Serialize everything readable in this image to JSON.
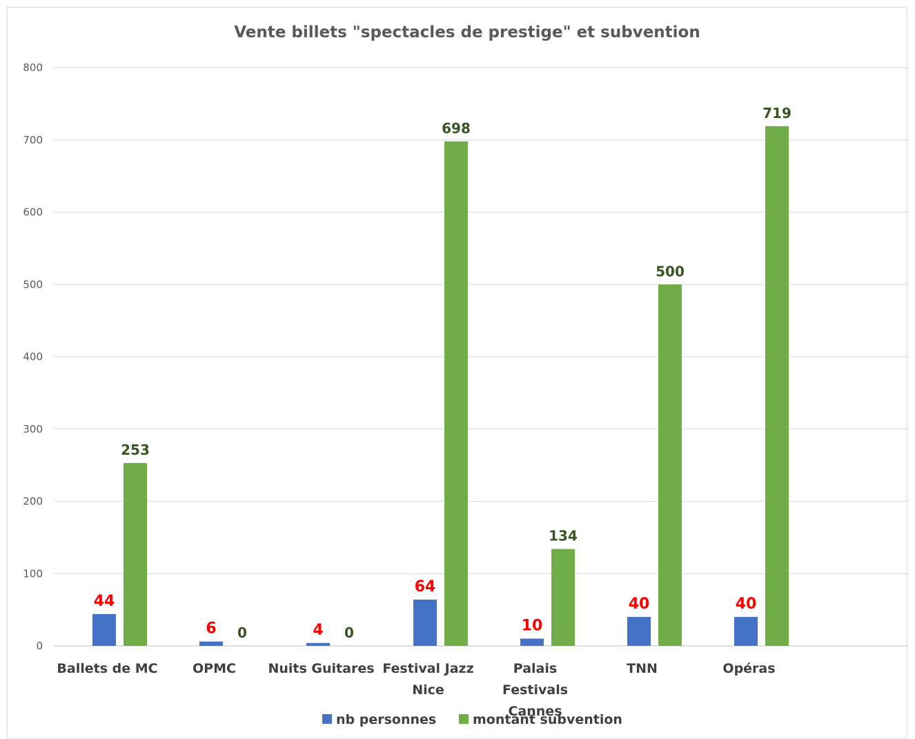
{
  "chart_data": {
    "type": "bar",
    "title": "Vente billets \"spectacles de prestige\" et subvention",
    "xlabel": "",
    "ylabel": "",
    "ylim": [
      0,
      800
    ],
    "yticks": [
      "0",
      "100",
      "200",
      "300",
      "400",
      "500",
      "600",
      "700",
      "800"
    ],
    "categories": [
      [
        "Ballets de MC"
      ],
      [
        "OPMC"
      ],
      [
        "Nuits Guitares"
      ],
      [
        "Festival Jazz",
        "Nice"
      ],
      [
        "Palais",
        "Festivals",
        "Cannes"
      ],
      [
        "TNN"
      ],
      [
        "Opéras"
      ]
    ],
    "series": [
      {
        "name": "nb personnes",
        "color": "#4472c4",
        "label_color": "#ff0000",
        "values": [
          44,
          6,
          4,
          64,
          10,
          40,
          40
        ]
      },
      {
        "name": "montant subvention",
        "color": "#70ad47",
        "label_color": "#375623",
        "values": [
          253,
          0,
          0,
          698,
          134,
          500,
          719
        ]
      }
    ],
    "grid": true,
    "legend_position": "bottom"
  }
}
